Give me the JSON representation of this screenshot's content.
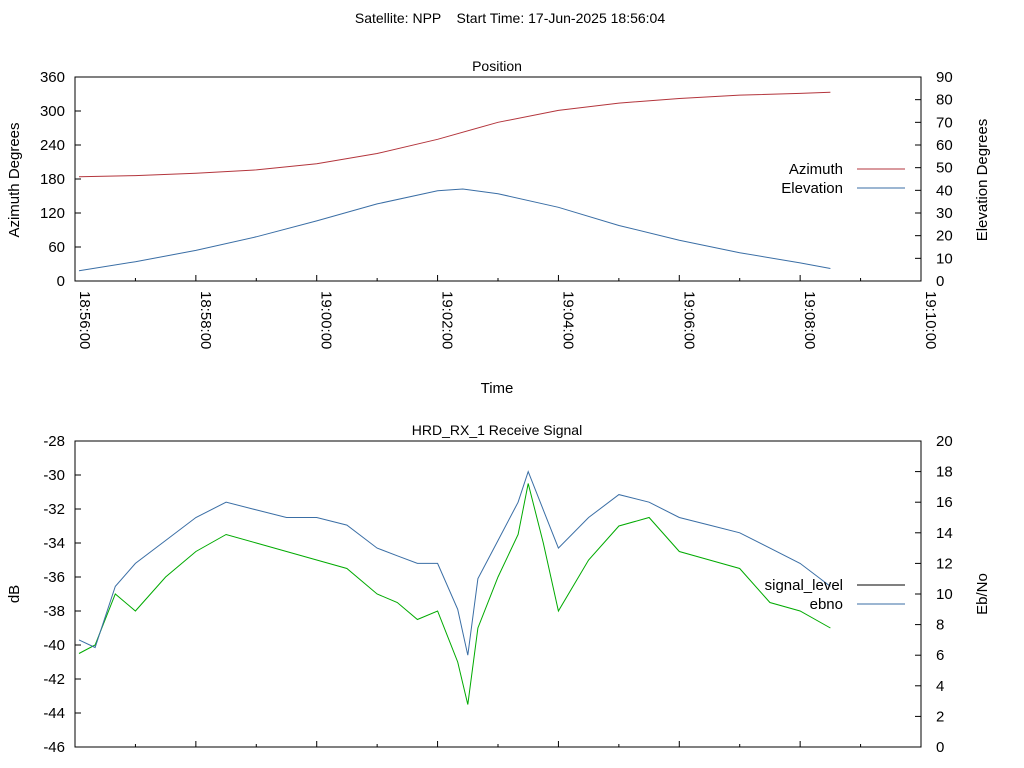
{
  "suptitle": "Satellite: NPP    Start Time: 17-Jun-2025 18:56:04",
  "chart_data": [
    {
      "type": "line",
      "title": "Position",
      "xlabel": "Time",
      "ylabel": "Azimuth Degrees",
      "y2label": "Elevation Degrees",
      "xlim": [
        "18:56:00",
        "19:10:00"
      ],
      "xticks": [
        "18:56:00",
        "18:58:00",
        "19:00:00",
        "19:02:00",
        "19:04:00",
        "19:06:00",
        "19:08:00",
        "19:10:00"
      ],
      "ylim": [
        0,
        360
      ],
      "yticks": [
        0,
        60,
        120,
        180,
        240,
        300,
        360
      ],
      "y2lim": [
        0,
        90
      ],
      "y2ticks": [
        0,
        10,
        20,
        30,
        40,
        50,
        60,
        70,
        80,
        90
      ],
      "legend_position": "right",
      "series": [
        {
          "name": "Azimuth",
          "axis": "left",
          "color": "#b3353c",
          "x": [
            "18:56:04",
            "18:57:00",
            "18:58:00",
            "18:59:00",
            "19:00:00",
            "19:01:00",
            "19:02:00",
            "19:03:00",
            "19:04:00",
            "19:05:00",
            "19:06:00",
            "19:07:00",
            "19:08:00",
            "19:08:30"
          ],
          "y": [
            184,
            186,
            190,
            196,
            207,
            225,
            250,
            280,
            301,
            314,
            322,
            328,
            331,
            333
          ]
        },
        {
          "name": "Elevation",
          "axis": "right",
          "color": "#3a6ea5",
          "x": [
            "18:56:04",
            "18:57:00",
            "18:58:00",
            "18:59:00",
            "19:00:00",
            "19:01:00",
            "19:02:00",
            "19:02:25",
            "19:03:00",
            "19:04:00",
            "19:05:00",
            "19:06:00",
            "19:07:00",
            "19:08:00",
            "19:08:30"
          ],
          "y": [
            4.5,
            8.5,
            13.5,
            19.5,
            26.5,
            34,
            39.8,
            40.6,
            38.5,
            32.5,
            24.5,
            18,
            12.5,
            8,
            5.5
          ]
        }
      ]
    },
    {
      "type": "line",
      "title": "HRD_RX_1 Receive Signal",
      "ylabel": "dB",
      "y2label": "Eb/No",
      "xlim": [
        "18:56:00",
        "19:10:00"
      ],
      "ylim": [
        -46,
        -28
      ],
      "yticks": [
        -46,
        -44,
        -42,
        -40,
        -38,
        -36,
        -34,
        -32,
        -30,
        -28
      ],
      "y2lim": [
        0,
        20
      ],
      "y2ticks": [
        0,
        2,
        4,
        6,
        8,
        10,
        12,
        14,
        16,
        18,
        20
      ],
      "legend_position": "right",
      "series": [
        {
          "name": "signal_level",
          "axis": "left",
          "color": "#00aa00",
          "legend_color": "#000000",
          "x": [
            "18:56:04",
            "18:56:20",
            "18:56:40",
            "18:57:00",
            "18:57:30",
            "18:58:00",
            "18:58:30",
            "18:59:00",
            "18:59:30",
            "19:00:00",
            "19:00:30",
            "19:01:00",
            "19:01:20",
            "19:01:40",
            "19:02:00",
            "19:02:20",
            "19:02:30",
            "19:02:40",
            "19:03:00",
            "19:03:20",
            "19:03:30",
            "19:03:45",
            "19:04:00",
            "19:04:30",
            "19:05:00",
            "19:05:30",
            "19:06:00",
            "19:06:30",
            "19:07:00",
            "19:07:30",
            "19:08:00",
            "19:08:30"
          ],
          "y": [
            -40.5,
            -40,
            -37,
            -38,
            -36,
            -34.5,
            -33.5,
            -34,
            -34.5,
            -35,
            -35.5,
            -37,
            -37.5,
            -38.5,
            -38,
            -41,
            -43.5,
            -39,
            -36,
            -33.5,
            -30.5,
            -34,
            -38,
            -35,
            -33,
            -32.5,
            -34.5,
            -35,
            -35.5,
            -37.5,
            -38,
            -39
          ]
        },
        {
          "name": "ebno",
          "axis": "right",
          "color": "#3a6ea5",
          "x": [
            "18:56:04",
            "18:56:20",
            "18:56:40",
            "18:57:00",
            "18:57:30",
            "18:58:00",
            "18:58:30",
            "18:59:00",
            "18:59:30",
            "19:00:00",
            "19:00:30",
            "19:01:00",
            "19:01:20",
            "19:01:40",
            "19:02:00",
            "19:02:20",
            "19:02:30",
            "19:02:40",
            "19:03:00",
            "19:03:20",
            "19:03:30",
            "19:03:45",
            "19:04:00",
            "19:04:30",
            "19:05:00",
            "19:05:30",
            "19:06:00",
            "19:06:30",
            "19:07:00",
            "19:07:30",
            "19:08:00",
            "19:08:30"
          ],
          "y": [
            7,
            6.5,
            10.5,
            12,
            13.5,
            15,
            16,
            15.5,
            15,
            15,
            14.5,
            13,
            12.5,
            12,
            12,
            9,
            6,
            11,
            13.5,
            16,
            18,
            15.5,
            13,
            15,
            16.5,
            16,
            15,
            14.5,
            14,
            13,
            12,
            10.5
          ]
        }
      ]
    }
  ]
}
